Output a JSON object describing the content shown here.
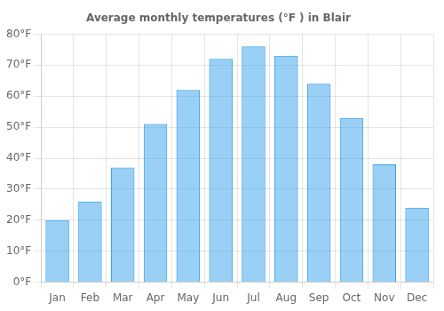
{
  "chart_data": {
    "type": "bar",
    "title": "Average monthly temperatures (°F ) in Blair",
    "categories": [
      "Jan",
      "Feb",
      "Mar",
      "Apr",
      "May",
      "Jun",
      "Jul",
      "Aug",
      "Sep",
      "Oct",
      "Nov",
      "Dec"
    ],
    "values": [
      20,
      26,
      37,
      51,
      62,
      72,
      76,
      73,
      64,
      53,
      38,
      24
    ],
    "ylim": [
      0,
      80
    ],
    "yticks": [
      {
        "value": 0,
        "label": "0°F"
      },
      {
        "value": 10,
        "label": "10°F"
      },
      {
        "value": 20,
        "label": "20°F"
      },
      {
        "value": 30,
        "label": "30°F"
      },
      {
        "value": 40,
        "label": "40°F"
      },
      {
        "value": 50,
        "label": "50°F"
      },
      {
        "value": 60,
        "label": "60°F"
      },
      {
        "value": 70,
        "label": "70°F"
      },
      {
        "value": 80,
        "label": "80°F"
      }
    ],
    "grid": true
  }
}
